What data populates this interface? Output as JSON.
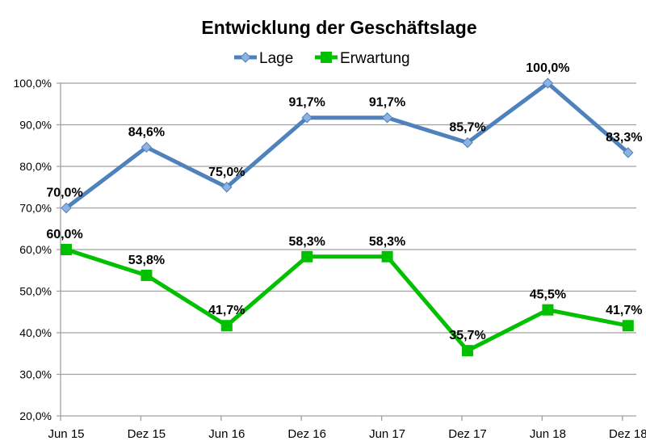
{
  "chart_data": {
    "type": "line",
    "title": "Entwicklung der Geschäftslage",
    "categories": [
      "Jun 15",
      "Dez 15",
      "Jun 16",
      "Dez 16",
      "Jun 17",
      "Dez 17",
      "Jun 18",
      "Dez 18"
    ],
    "ylim": [
      20,
      100
    ],
    "yticks": [
      "20,0%",
      "30,0%",
      "40,0%",
      "50,0%",
      "60,0%",
      "70,0%",
      "80,0%",
      "90,0%",
      "100,0%"
    ],
    "grid": true,
    "legend": "top",
    "series": [
      {
        "name": "Lage",
        "color": "#4f81bd",
        "marker": "diamond",
        "values": [
          70.0,
          84.6,
          75.0,
          91.7,
          91.7,
          85.7,
          100.0,
          83.3
        ],
        "labels": [
          "70,0%",
          "84,6%",
          "75,0%",
          "91,7%",
          "91,7%",
          "85,7%",
          "100,0%",
          "83,3%"
        ]
      },
      {
        "name": "Erwartung",
        "color": "#00c000",
        "marker": "square",
        "values": [
          60.0,
          53.8,
          41.7,
          58.3,
          58.3,
          35.7,
          45.5,
          41.7
        ],
        "labels": [
          "60,0%",
          "53,8%",
          "41,7%",
          "58,3%",
          "58,3%",
          "35,7%",
          "45,5%",
          "41,7%"
        ]
      }
    ]
  }
}
